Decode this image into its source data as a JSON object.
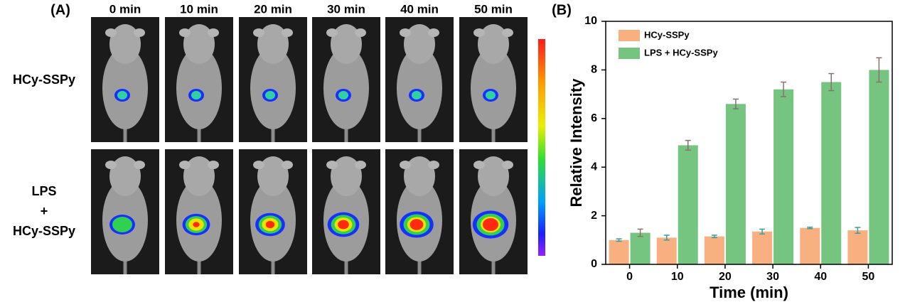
{
  "panel_a": {
    "label": "(A)",
    "columns": [
      "0 min",
      "10 min",
      "20 min",
      "30 min",
      "40 min",
      "50 min"
    ],
    "rows": [
      [
        "HCy-SSPy"
      ],
      [
        "LPS",
        "+",
        "HCy-SSPy"
      ]
    ]
  },
  "chart_data": {
    "type": "bar",
    "label": "(B)",
    "x_label": "Time (min)",
    "y_label": "Relative Intensity",
    "categories": [
      "0",
      "10",
      "20",
      "30",
      "40",
      "50"
    ],
    "series": [
      {
        "name": "HCy-SSPy",
        "color": "#f7a26a",
        "values": [
          1.0,
          1.1,
          1.15,
          1.35,
          1.5,
          1.4
        ],
        "errors": [
          0.05,
          0.1,
          0.05,
          0.1,
          0.03,
          0.12
        ]
      },
      {
        "name": "LPS + HCy-SSPy",
        "color": "#5dbb6b",
        "values": [
          1.3,
          4.9,
          6.6,
          7.2,
          7.5,
          8.0
        ],
        "errors": [
          0.15,
          0.2,
          0.2,
          0.3,
          0.35,
          0.5
        ]
      }
    ],
    "ylim": [
      0,
      10
    ],
    "yticks": [
      0,
      2,
      4,
      6,
      8,
      10
    ],
    "legend": "upper left"
  }
}
